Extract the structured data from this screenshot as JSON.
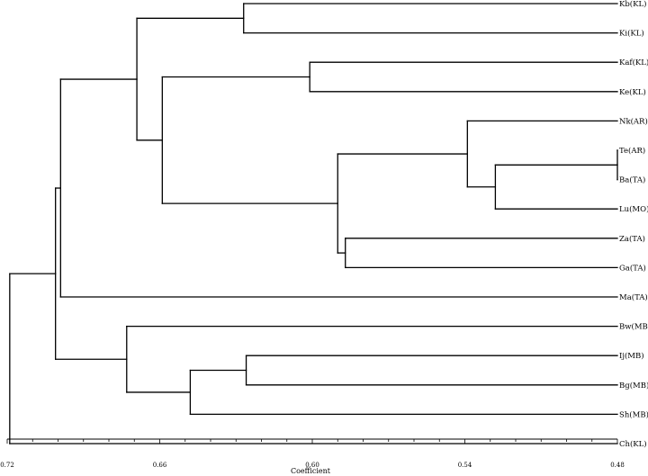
{
  "chart_data": {
    "type": "dendrogram",
    "xlabel": "Coefficient",
    "xlim": [
      0.72,
      0.48
    ],
    "ticks": [
      "0.72",
      "0.66",
      "0.60",
      "0.54",
      "0.48"
    ],
    "leaves": [
      "Kb(KL)",
      "Ki(KL)",
      "Kaf(KL)",
      "Ke(KL)",
      "Nk(AR)",
      "Te(AR)",
      "Ba(TA)",
      "Lu(MO)",
      "Za(TA)",
      "Ga(TA)",
      "Ma(TA)",
      "Bw(MB)",
      "Ij(MB)",
      "Bg(MB)",
      "Sh(MB)",
      "Ch(KL)"
    ],
    "merges": [
      {
        "a": "Kb(KL)",
        "b": "Ki(KL)",
        "h": 0.627
      },
      {
        "a": "Kaf(KL)",
        "b": "Ke(KL)",
        "h": 0.601
      },
      {
        "a": "Te(AR)",
        "b": "Ba(TA)",
        "h": 0.48
      },
      {
        "a": "m3",
        "b": "Lu(MO)",
        "h": 0.528
      },
      {
        "a": "Nk(AR)",
        "b": "m4",
        "h": 0.539
      },
      {
        "a": "Za(TA)",
        "b": "Ga(TA)",
        "h": 0.587
      },
      {
        "a": "m5",
        "b": "m6",
        "h": 0.59
      },
      {
        "a": "m2",
        "b": "m7",
        "h": 0.659
      },
      {
        "a": "m1",
        "b": "m8",
        "h": 0.669
      },
      {
        "a": "m9",
        "b": "Ma(TA)",
        "h": 0.699
      },
      {
        "a": "Ij(MB)",
        "b": "Bg(MB)",
        "h": 0.626
      },
      {
        "a": "m11",
        "b": "Sh(MB)",
        "h": 0.648
      },
      {
        "a": "Bw(MB)",
        "b": "m12",
        "h": 0.673
      },
      {
        "a": "m10",
        "b": "m13",
        "h": 0.701
      },
      {
        "a": "m14",
        "b": "Ch(KL)",
        "h": 0.719
      }
    ]
  }
}
